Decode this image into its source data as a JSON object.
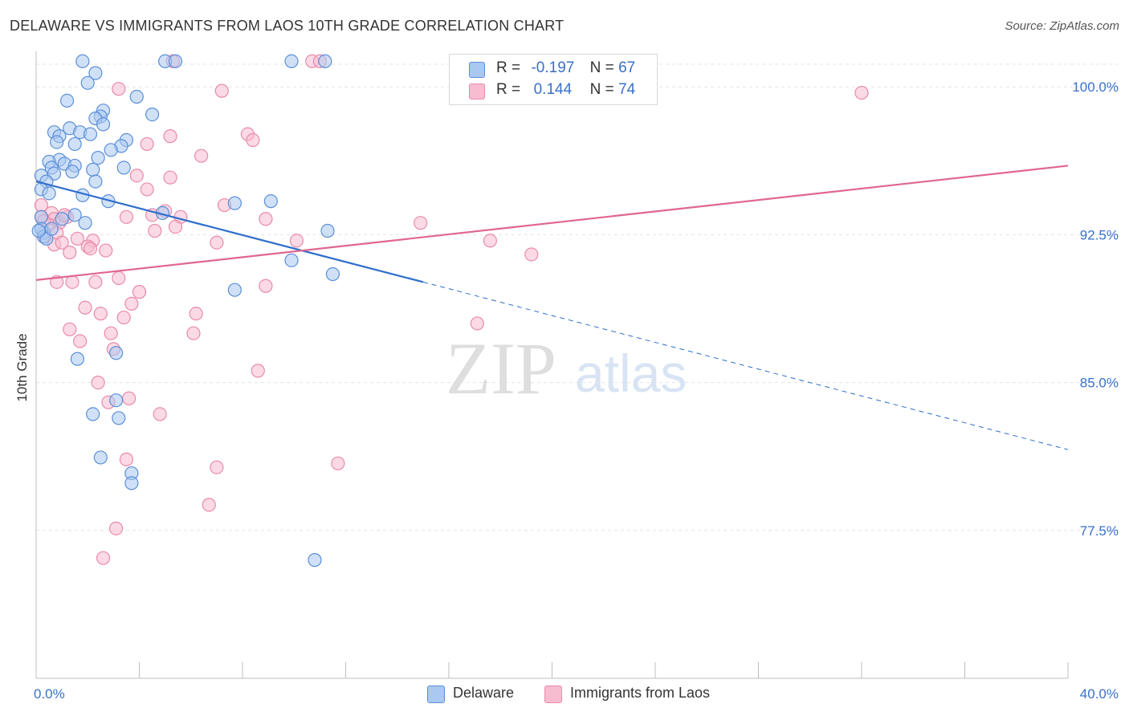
{
  "title": "DELAWARE VS IMMIGRANTS FROM LAOS 10TH GRADE CORRELATION CHART",
  "source": "Source: ZipAtlas.com",
  "watermark": {
    "zip": "ZIP",
    "atlas": "atlas"
  },
  "colors": {
    "delaware_fill": "#aac8f0",
    "delaware_stroke": "#5b8fd8",
    "delaware_line": "#2f6fcc",
    "laos_fill": "#f7bcd0",
    "laos_stroke": "#e98aaa",
    "laos_line": "#e06690",
    "axis_label": "#3a70c8",
    "grid": "#e4e4e4"
  },
  "legend_top": [
    {
      "series": "Delaware",
      "r_label": "R =",
      "r_value": "-0.197",
      "n_label": "N =",
      "n_value": "67"
    },
    {
      "series": "Immigrants from Laos",
      "r_label": "R =",
      "r_value": "0.144",
      "n_label": "N =",
      "n_value": "74"
    }
  ],
  "chart_data": {
    "type": "scatter",
    "title": "DELAWARE VS IMMIGRANTS FROM LAOS 10TH GRADE CORRELATION CHART",
    "xlabel": "",
    "ylabel": "10th Grade",
    "xlim": [
      0,
      40
    ],
    "ylim": [
      70,
      101.8
    ],
    "x_tick_labels": [
      "0.0%",
      "40.0%"
    ],
    "y_ticks": [
      77.5,
      85.0,
      92.5,
      100.0
    ],
    "y_tick_labels": [
      "77.5%",
      "85.0%",
      "92.5%",
      "100.0%"
    ],
    "grid": true,
    "legend_position": "bottom-center",
    "series": [
      {
        "name": "Delaware",
        "r": -0.197,
        "n": 67,
        "trend": {
          "x0": 0,
          "y0": 95.2,
          "x1": 15,
          "y1": 90.1,
          "x_extend": 40,
          "y_extend": 81.6
        },
        "points": [
          [
            1.8,
            101.3
          ],
          [
            2.3,
            100.7
          ],
          [
            2.0,
            100.2
          ],
          [
            5.0,
            101.3
          ],
          [
            5.4,
            101.3
          ],
          [
            9.9,
            101.3
          ],
          [
            11.2,
            101.3
          ],
          [
            1.2,
            99.3
          ],
          [
            3.9,
            99.5
          ],
          [
            2.6,
            98.8
          ],
          [
            2.5,
            98.5
          ],
          [
            4.5,
            98.6
          ],
          [
            2.3,
            98.4
          ],
          [
            2.6,
            98.1
          ],
          [
            0.7,
            97.7
          ],
          [
            1.3,
            97.9
          ],
          [
            1.7,
            97.7
          ],
          [
            2.1,
            97.6
          ],
          [
            0.9,
            97.5
          ],
          [
            1.5,
            97.1
          ],
          [
            3.5,
            97.3
          ],
          [
            0.8,
            97.2
          ],
          [
            3.3,
            97.0
          ],
          [
            2.9,
            96.8
          ],
          [
            0.9,
            96.3
          ],
          [
            2.4,
            96.4
          ],
          [
            1.1,
            96.1
          ],
          [
            0.5,
            96.2
          ],
          [
            0.6,
            95.9
          ],
          [
            1.5,
            96.0
          ],
          [
            2.2,
            95.8
          ],
          [
            3.4,
            95.9
          ],
          [
            0.7,
            95.6
          ],
          [
            1.4,
            95.7
          ],
          [
            0.2,
            95.5
          ],
          [
            2.3,
            95.2
          ],
          [
            0.4,
            95.2
          ],
          [
            0.2,
            94.8
          ],
          [
            0.5,
            94.6
          ],
          [
            1.8,
            94.5
          ],
          [
            2.8,
            94.2
          ],
          [
            7.7,
            94.1
          ],
          [
            9.1,
            94.2
          ],
          [
            1.5,
            93.5
          ],
          [
            4.9,
            93.6
          ],
          [
            0.2,
            93.4
          ],
          [
            1.9,
            93.1
          ],
          [
            0.3,
            92.6
          ],
          [
            11.3,
            92.7
          ],
          [
            9.9,
            91.2
          ],
          [
            11.5,
            90.5
          ],
          [
            7.7,
            89.7
          ],
          [
            1.6,
            86.2
          ],
          [
            3.1,
            86.5
          ],
          [
            3.1,
            84.1
          ],
          [
            2.2,
            83.4
          ],
          [
            3.2,
            83.2
          ],
          [
            2.5,
            81.2
          ],
          [
            3.7,
            80.4
          ],
          [
            3.7,
            79.9
          ],
          [
            10.8,
            76.0
          ],
          [
            0.2,
            92.8
          ],
          [
            0.3,
            92.4
          ],
          [
            0.4,
            92.3
          ],
          [
            0.1,
            92.7
          ],
          [
            1.0,
            93.3
          ],
          [
            0.6,
            92.8
          ]
        ]
      },
      {
        "name": "Immigrants from Laos",
        "r": 0.144,
        "n": 74,
        "trend": {
          "x0": 0,
          "y0": 90.2,
          "x1": 40,
          "y1": 96.0
        },
        "points": [
          [
            5.3,
            101.3
          ],
          [
            10.7,
            101.3
          ],
          [
            11.0,
            101.3
          ],
          [
            3.2,
            99.9
          ],
          [
            7.2,
            99.8
          ],
          [
            32.0,
            99.7
          ],
          [
            8.2,
            97.6
          ],
          [
            5.2,
            97.5
          ],
          [
            8.4,
            97.3
          ],
          [
            4.3,
            97.1
          ],
          [
            6.4,
            96.5
          ],
          [
            3.9,
            95.5
          ],
          [
            5.2,
            95.4
          ],
          [
            4.3,
            94.8
          ],
          [
            0.2,
            94.0
          ],
          [
            7.3,
            94.0
          ],
          [
            4.5,
            93.5
          ],
          [
            5.0,
            93.7
          ],
          [
            0.6,
            93.6
          ],
          [
            0.2,
            93.4
          ],
          [
            3.5,
            93.4
          ],
          [
            5.6,
            93.4
          ],
          [
            8.9,
            93.3
          ],
          [
            1.2,
            93.4
          ],
          [
            0.7,
            93.3
          ],
          [
            14.9,
            93.1
          ],
          [
            0.5,
            93.0
          ],
          [
            0.9,
            93.1
          ],
          [
            5.4,
            92.9
          ],
          [
            4.6,
            92.7
          ],
          [
            0.8,
            92.6
          ],
          [
            0.3,
            92.4
          ],
          [
            1.6,
            92.3
          ],
          [
            2.2,
            92.2
          ],
          [
            7.0,
            92.1
          ],
          [
            10.1,
            92.2
          ],
          [
            17.6,
            92.2
          ],
          [
            0.7,
            92.0
          ],
          [
            1.0,
            92.1
          ],
          [
            2.0,
            91.9
          ],
          [
            2.1,
            91.8
          ],
          [
            2.7,
            91.7
          ],
          [
            1.3,
            91.6
          ],
          [
            19.2,
            91.5
          ],
          [
            3.2,
            90.3
          ],
          [
            0.8,
            90.1
          ],
          [
            1.4,
            90.1
          ],
          [
            2.3,
            90.1
          ],
          [
            8.9,
            89.9
          ],
          [
            4.0,
            89.6
          ],
          [
            3.7,
            89.0
          ],
          [
            1.9,
            88.8
          ],
          [
            2.5,
            88.5
          ],
          [
            3.4,
            88.3
          ],
          [
            6.2,
            88.5
          ],
          [
            17.1,
            88.0
          ],
          [
            1.3,
            87.7
          ],
          [
            2.9,
            87.5
          ],
          [
            6.1,
            87.5
          ],
          [
            1.7,
            87.1
          ],
          [
            3.0,
            86.7
          ],
          [
            8.6,
            85.6
          ],
          [
            2.4,
            85.0
          ],
          [
            3.6,
            84.2
          ],
          [
            2.8,
            84.0
          ],
          [
            4.8,
            83.4
          ],
          [
            3.5,
            81.1
          ],
          [
            7.0,
            80.7
          ],
          [
            11.7,
            80.9
          ],
          [
            6.7,
            78.8
          ],
          [
            3.1,
            77.6
          ],
          [
            2.6,
            76.1
          ],
          [
            1.1,
            93.5
          ],
          [
            0.3,
            93.2
          ]
        ]
      }
    ]
  }
}
